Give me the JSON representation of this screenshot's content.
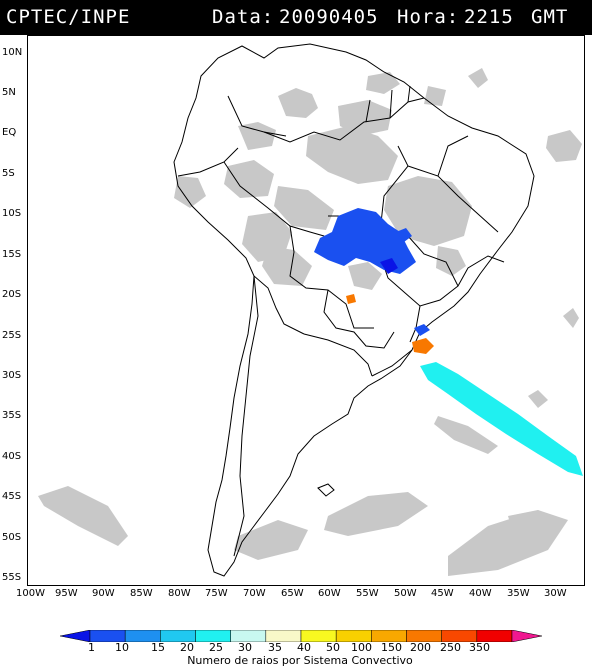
{
  "header": {
    "source": "CPTEC/INPE",
    "date_label": "Data:",
    "date_value": "20090405",
    "hour_label": "Hora:",
    "hour_value": "2215",
    "timezone": "GMT"
  },
  "map": {
    "lat_ticks": [
      "10N",
      "5N",
      "EQ",
      "5S",
      "10S",
      "15S",
      "20S",
      "25S",
      "30S",
      "35S",
      "40S",
      "45S",
      "50S",
      "55S"
    ],
    "lon_ticks": [
      "100W",
      "95W",
      "90W",
      "85W",
      "80W",
      "75W",
      "70W",
      "65W",
      "60W",
      "55W",
      "50W",
      "45W",
      "40W",
      "35W",
      "30W"
    ],
    "cloud_color": "#c8c8c8",
    "boundary_color": "#000000"
  },
  "colorbar": {
    "title": "Numero de raios por Sistema Convectivo",
    "labels": [
      "1",
      "10",
      "15",
      "20",
      "25",
      "30",
      "35",
      "40",
      "50",
      "100",
      "150",
      "200",
      "250",
      "350"
    ],
    "colors": [
      "#0a14e6",
      "#1a50f0",
      "#1e90f0",
      "#20c8f0",
      "#20f0f0",
      "#c8f8f0",
      "#f8f8c8",
      "#f8f820",
      "#f8d000",
      "#f8a800",
      "#f87800",
      "#f84800",
      "#f00000",
      "#f01890"
    ]
  },
  "features": [
    {
      "name": "lightning-cluster-central-brazil",
      "color": "#1a50f0"
    },
    {
      "name": "lightning-cluster-south-atlantic",
      "color": "#20f0f0"
    },
    {
      "name": "lightning-cluster-paraguay",
      "color": "#f87800"
    },
    {
      "name": "lightning-cluster-sao-paulo",
      "color": "#f87800"
    },
    {
      "name": "lightning-cluster-parana",
      "color": "#1a50f0"
    }
  ]
}
